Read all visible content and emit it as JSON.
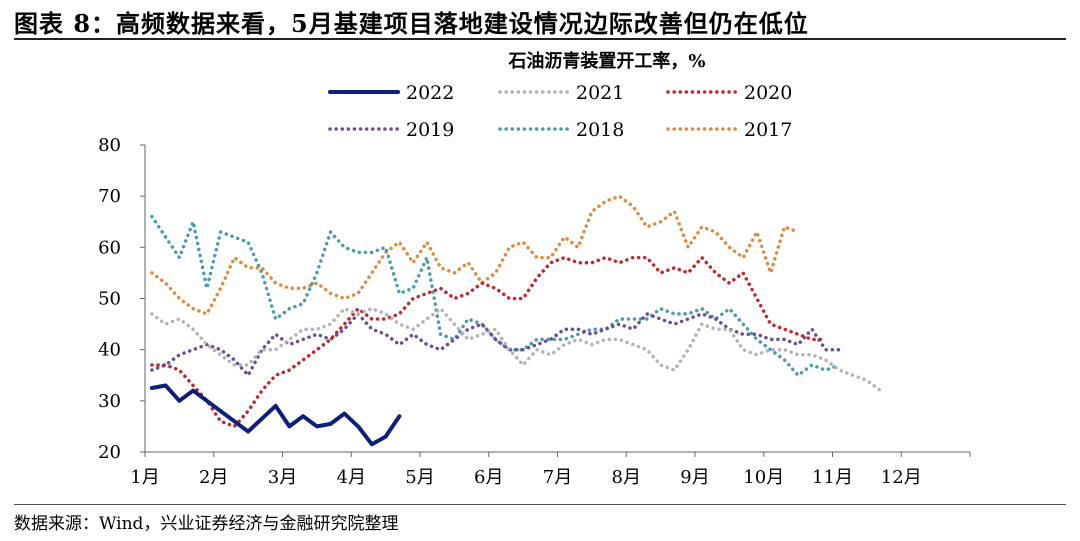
{
  "header": {
    "title": "图表 8：高频数据来看，5月基建项目落地建设情况边际改善但仍在低位"
  },
  "footer": {
    "source": "数据来源：Wind，兴业证券经济与金融研究院整理"
  },
  "colors": {
    "2022": "#0d1f7a",
    "2021": "#b3b3b3",
    "2020": "#c0282d",
    "2019": "#6b4f96",
    "2018": "#4a9bb0",
    "2017": "#e08a40"
  },
  "chart_data": {
    "type": "line",
    "title": "石油沥青装置开工率，%",
    "xlabel": "",
    "ylabel": "",
    "ylim": [
      20,
      80
    ],
    "yticks": [
      "20",
      "30",
      "40",
      "50",
      "60",
      "70",
      "80"
    ],
    "xlim": [
      1,
      13
    ],
    "month_ticks": [
      "1月",
      "2月",
      "3月",
      "4月",
      "5月",
      "6月",
      "7月",
      "8月",
      "9月",
      "10月",
      "11月",
      "12月"
    ],
    "grid": false,
    "legend_position": "top",
    "series": [
      {
        "name": "2022",
        "style": "solid",
        "x": [
          1.1,
          1.3,
          1.5,
          1.7,
          1.9,
          2.1,
          2.3,
          2.5,
          2.7,
          2.9,
          3.1,
          3.3,
          3.5,
          3.7,
          3.9,
          4.1,
          4.3,
          4.5,
          4.7,
          4.9,
          5.1,
          5.3
        ],
        "values": [
          32.5,
          33,
          30,
          32,
          30,
          28,
          26,
          24,
          26.5,
          29,
          25,
          27,
          25,
          25.5,
          27.5,
          25,
          21.5,
          23,
          27,
          null,
          null,
          null
        ]
      },
      {
        "name": "2021",
        "style": "dotted",
        "x": [
          1.1,
          1.3,
          1.5,
          1.7,
          1.9,
          2.1,
          2.3,
          2.5,
          2.7,
          2.9,
          3.1,
          3.3,
          3.5,
          3.7,
          3.9,
          4.1,
          4.3,
          4.5,
          4.7,
          4.9,
          5.1,
          5.3,
          5.5,
          5.7,
          5.9,
          6.1,
          6.3,
          6.5,
          6.7,
          6.9,
          7.1,
          7.3,
          7.5,
          7.7,
          7.9,
          8.1,
          8.3,
          8.5,
          8.7,
          8.9,
          9.1,
          9.3,
          9.5,
          9.7,
          9.9,
          10.1,
          10.3,
          10.5,
          10.7,
          10.9,
          11.1,
          11.3,
          11.5,
          11.7,
          11.9,
          12.1,
          12.3,
          12.5,
          12.7,
          12.9
        ],
        "values": [
          47,
          45,
          46,
          44,
          41,
          39,
          37,
          37,
          40,
          40,
          42,
          44,
          44,
          45,
          48,
          47,
          48,
          47,
          45,
          44,
          46,
          48,
          45,
          42,
          43,
          44,
          40,
          37,
          40,
          39,
          41,
          42,
          41,
          42,
          42,
          41,
          40,
          37,
          36,
          40,
          45,
          44,
          44,
          40,
          39,
          40,
          40,
          39,
          39,
          38,
          36,
          35,
          34,
          32,
          null,
          null,
          null,
          null,
          null,
          null
        ]
      },
      {
        "name": "2020",
        "style": "dotted",
        "x": [
          1.1,
          1.3,
          1.5,
          1.7,
          1.9,
          2.1,
          2.3,
          2.5,
          2.7,
          2.9,
          3.1,
          3.3,
          3.5,
          3.7,
          3.9,
          4.1,
          4.3,
          4.5,
          4.7,
          4.9,
          5.1,
          5.3,
          5.5,
          5.7,
          5.9,
          6.1,
          6.3,
          6.5,
          6.7,
          6.9,
          7.1,
          7.3,
          7.5,
          7.7,
          7.9,
          8.1,
          8.3,
          8.5,
          8.7,
          8.9,
          9.1,
          9.3,
          9.5,
          9.7,
          9.9,
          10.1,
          10.3,
          10.5,
          10.7,
          10.9,
          11.1,
          11.3,
          11.5,
          11.7,
          11.9,
          12.1,
          12.3,
          12.5,
          12.7,
          12.9
        ],
        "values": [
          37,
          37,
          36,
          33,
          30,
          26,
          25,
          28,
          32,
          35,
          36,
          38,
          40,
          42,
          45,
          48,
          46,
          46,
          47,
          50,
          51,
          52,
          50,
          51,
          53,
          52,
          50,
          50,
          54,
          57,
          58,
          57,
          57,
          58,
          57,
          58,
          58,
          55,
          56,
          55,
          58,
          55,
          53,
          55,
          50,
          45,
          44,
          43,
          42,
          42,
          null,
          null,
          null,
          null,
          null,
          null,
          null,
          null,
          null,
          null
        ]
      },
      {
        "name": "2019",
        "style": "dotted",
        "x": [
          1.1,
          1.3,
          1.5,
          1.7,
          1.9,
          2.1,
          2.3,
          2.5,
          2.7,
          2.9,
          3.1,
          3.3,
          3.5,
          3.7,
          3.9,
          4.1,
          4.3,
          4.5,
          4.7,
          4.9,
          5.1,
          5.3,
          5.5,
          5.7,
          5.9,
          6.1,
          6.3,
          6.5,
          6.7,
          6.9,
          7.1,
          7.3,
          7.5,
          7.7,
          7.9,
          8.1,
          8.3,
          8.5,
          8.7,
          8.9,
          9.1,
          9.3,
          9.5,
          9.7,
          9.9,
          10.1,
          10.3,
          10.5,
          10.7,
          10.9,
          11.1,
          11.3,
          11.5,
          11.7,
          11.9,
          12.1,
          12.3,
          12.5,
          12.7,
          12.9
        ],
        "values": [
          36,
          37,
          39,
          40,
          41,
          40,
          38,
          35,
          40,
          43,
          41,
          42,
          43,
          42,
          44,
          47,
          44,
          43,
          41,
          43,
          41,
          40,
          42,
          44,
          45,
          42,
          40,
          40,
          41,
          42,
          44,
          44,
          43,
          44,
          45,
          44,
          47,
          46,
          45,
          46,
          47,
          46,
          44,
          43,
          43,
          42,
          42,
          41,
          44,
          40,
          40,
          null,
          null,
          null,
          null,
          null,
          null,
          null,
          null,
          null
        ]
      },
      {
        "name": "2018",
        "style": "dotted",
        "x": [
          1.1,
          1.3,
          1.5,
          1.7,
          1.9,
          2.1,
          2.3,
          2.5,
          2.7,
          2.9,
          3.1,
          3.3,
          3.5,
          3.7,
          3.9,
          4.1,
          4.3,
          4.5,
          4.7,
          4.9,
          5.1,
          5.3,
          5.5,
          5.7,
          5.9,
          6.1,
          6.3,
          6.5,
          6.7,
          6.9,
          7.1,
          7.3,
          7.5,
          7.7,
          7.9,
          8.1,
          8.3,
          8.5,
          8.7,
          8.9,
          9.1,
          9.3,
          9.5,
          9.7,
          9.9,
          10.1,
          10.3,
          10.5,
          10.7,
          10.9,
          11.1,
          11.3,
          11.5,
          11.7,
          11.9,
          12.1,
          12.3,
          12.5,
          12.7,
          12.9
        ],
        "values": [
          66,
          62,
          58,
          65,
          52,
          63,
          62,
          61,
          55,
          46,
          48,
          49,
          55,
          63,
          60,
          59,
          59,
          60,
          51,
          52,
          58,
          43,
          42,
          46,
          45,
          42,
          40,
          40,
          42,
          42,
          42,
          43,
          44,
          44,
          46,
          46,
          46,
          48,
          47,
          47,
          48,
          46,
          48,
          45,
          42,
          40,
          38,
          35,
          37,
          36,
          37,
          null,
          null,
          null,
          null,
          null,
          null,
          null,
          null,
          null
        ]
      },
      {
        "name": "2017",
        "style": "dotted",
        "x": [
          1.1,
          1.3,
          1.5,
          1.7,
          1.9,
          2.1,
          2.3,
          2.5,
          2.7,
          2.9,
          3.1,
          3.3,
          3.5,
          3.7,
          3.9,
          4.1,
          4.3,
          4.5,
          4.7,
          4.9,
          5.1,
          5.3,
          5.5,
          5.7,
          5.9,
          6.1,
          6.3,
          6.5,
          6.7,
          6.9,
          7.1,
          7.3,
          7.5,
          7.7,
          7.9,
          8.1,
          8.3,
          8.5,
          8.7,
          8.9,
          9.1,
          9.3,
          9.5,
          9.7,
          9.9,
          10.1,
          10.3,
          10.5,
          10.7,
          10.9,
          11.1,
          11.3,
          11.5,
          11.7,
          11.9,
          12.1,
          12.3,
          12.5,
          12.7,
          12.9
        ],
        "values": [
          55,
          53,
          50,
          48,
          47,
          52,
          58,
          56,
          56,
          53,
          52,
          52,
          53,
          51,
          50,
          51,
          55,
          59,
          61,
          57,
          61,
          56,
          55,
          57,
          53,
          55,
          60,
          61,
          58,
          58,
          62,
          60,
          67,
          69,
          70,
          68,
          64,
          65,
          67,
          60,
          64,
          63,
          60,
          58,
          63,
          55,
          64,
          63,
          null,
          null,
          null,
          null,
          null,
          null,
          null,
          null,
          null,
          null,
          null,
          null
        ]
      }
    ]
  }
}
